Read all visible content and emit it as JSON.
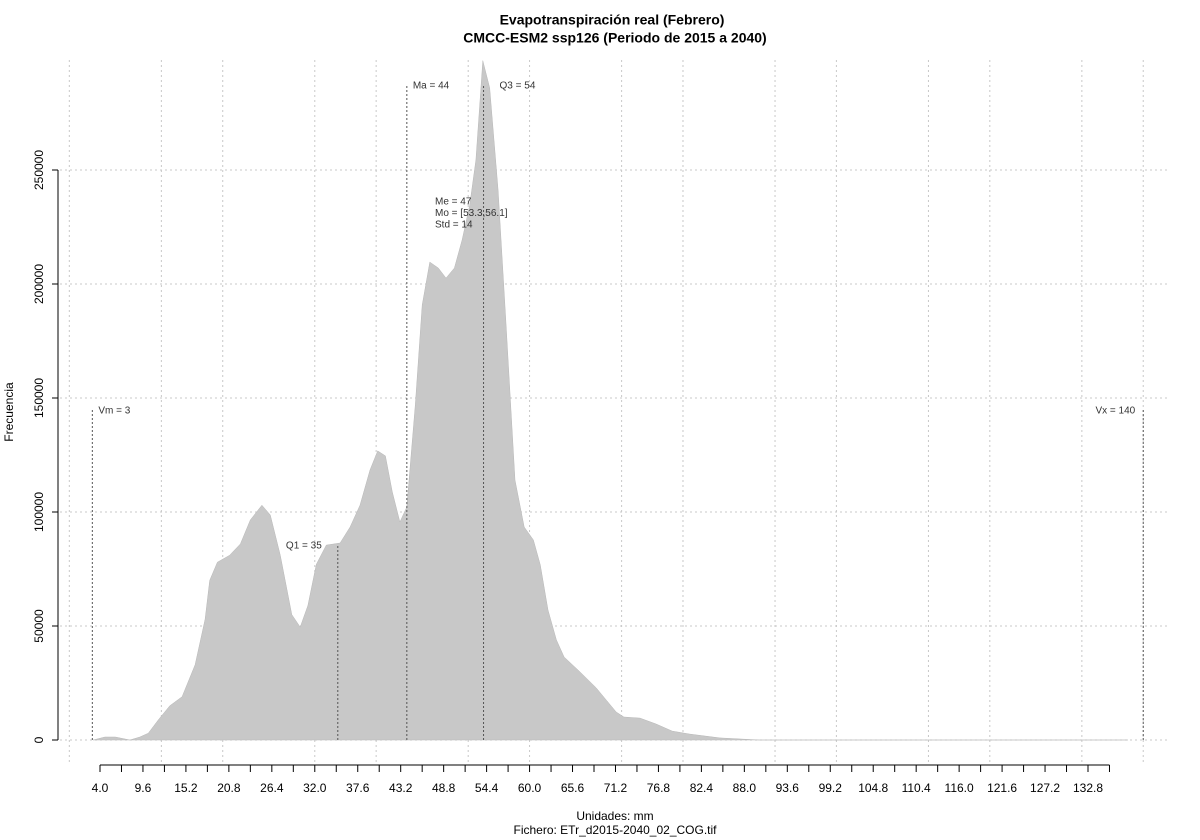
{
  "chart_data": {
    "type": "area",
    "title": "Evapotranspiración real (Febrero)",
    "subtitle": "CMCC-ESM2 ssp126 (Periodo de 2015 a 2040)",
    "x_label": "Unidades: mm",
    "footer": "Fichero: ETr_d2015-2040_02_COG.tif",
    "y_label": "Frecuencia",
    "color": "#c8c8c8",
    "x": [
      3.1,
      4.65,
      6,
      7.9,
      9.2,
      10.3,
      11.6,
      13.1,
      14.7,
      16.4,
      17.7,
      18.3,
      19.3,
      20.9,
      22.3,
      23.6,
      25.1,
      26.2,
      27.5,
      29.0,
      30.1,
      31.1,
      32.2,
      33.5,
      35.3,
      36.6,
      37.9,
      39.2,
      40.2,
      41.2,
      42.1,
      43.1,
      44.0,
      45.1,
      46.0,
      47.0,
      48.1,
      49.1,
      50.2,
      51.2,
      52.2,
      53.0,
      53.9,
      54.8,
      55.9,
      56.9,
      58.1,
      59.3,
      60.5,
      61.4,
      62.4,
      63.5,
      64.5,
      66.6,
      68.7,
      70.0,
      71.3,
      72.3,
      74.4,
      76.5,
      78.6,
      80.9,
      84.8,
      90,
      138
    ],
    "values": [
      0,
      1300,
      1300,
      0,
      1300,
      3000,
      8800,
      15000,
      19000,
      33000,
      53000,
      70000,
      78000,
      81000,
      86000,
      96500,
      103000,
      98700,
      81000,
      55000,
      49500,
      59000,
      77000,
      85500,
      86400,
      93400,
      103000,
      118400,
      126800,
      124600,
      108800,
      95600,
      102200,
      147000,
      190800,
      209600,
      207000,
      202600,
      207000,
      219300,
      234600,
      254400,
      298000,
      286000,
      241200,
      184200,
      114000,
      93400,
      87700,
      76800,
      57000,
      43900,
      36400,
      29800,
      22800,
      17500,
      12300,
      10100,
      9600,
      7000,
      3900,
      2600,
      900,
      0,
      0
    ],
    "xlim": [
      4,
      132.8
    ],
    "ylim": [
      0,
      250000
    ],
    "xticks": [
      {
        "value": 4,
        "label": "4.0"
      },
      9.6,
      15.2,
      20.8,
      26.4,
      {
        "value": 32,
        "label": "32.0"
      },
      37.6,
      43.2,
      48.8,
      54.4,
      {
        "value": 60,
        "label": "60.0"
      },
      65.6,
      71.2,
      76.8,
      82.4,
      {
        "value": 88,
        "label": "88.0"
      },
      93.6,
      99.2,
      104.8,
      110.4,
      {
        "value": 116,
        "label": "116.0"
      },
      121.6,
      127.2,
      132.8
    ],
    "xminor_ticks": [
      6.8,
      12.4,
      18,
      23.6,
      29.2,
      34.8,
      40.4,
      46,
      51.6,
      57.2,
      62.8,
      68.4,
      74,
      79.6,
      85.2,
      90.8,
      96.4,
      102,
      107.6,
      113.2,
      118.8,
      124.4,
      130,
      135.6
    ],
    "xgrid": [
      0,
      12,
      20,
      32,
      40,
      52,
      60,
      72,
      80,
      92,
      100,
      112,
      120,
      132,
      140
    ],
    "yticks": [
      0,
      50000,
      100000,
      150000,
      200000,
      250000
    ],
    "grid": true,
    "annotations": [
      {
        "label": "Vm = 3",
        "x": 3
      },
      {
        "label": "Q1 = 35",
        "x": 35
      },
      {
        "label": "Ma = 44",
        "x": 44
      },
      {
        "label": "Q3 = 54",
        "x": 54
      },
      {
        "label": "Vx = 140",
        "x": 140
      }
    ],
    "stats": [
      "Me = 47",
      "Mo = [53.3,56.1]",
      "Std = 14"
    ]
  }
}
